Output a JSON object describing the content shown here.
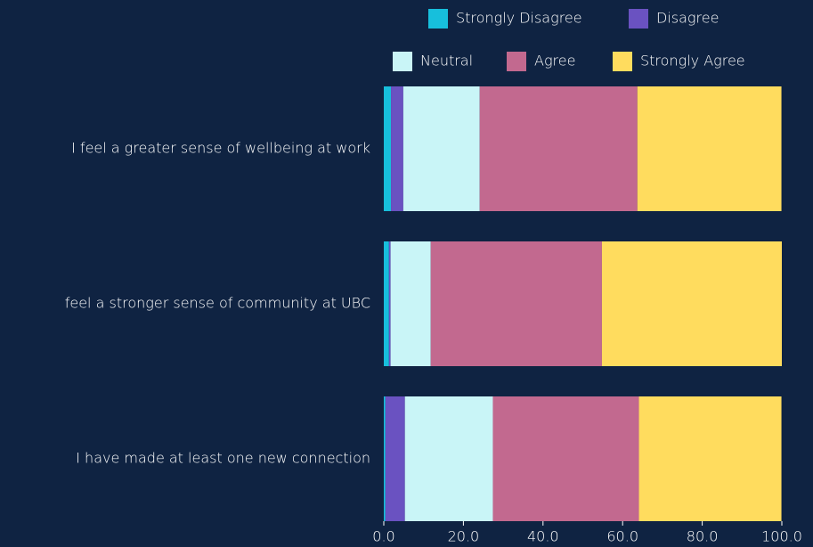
{
  "chart_data": {
    "type": "stacked-barh",
    "categories": [
      "I feel a greater sense of wellbeing at work",
      "feel a stronger sense of community at UBC",
      "I have made at least one new connection"
    ],
    "series": [
      {
        "name": "Strongly Disagree",
        "color": "#17bfdc",
        "values": [
          1.8,
          1.3,
          0.4
        ]
      },
      {
        "name": "Disagree",
        "color": "#6a52c1",
        "values": [
          3.1,
          0.4,
          4.9
        ]
      },
      {
        "name": "Neutral",
        "color": "#c9f5f7",
        "values": [
          19.2,
          10.1,
          22.1
        ]
      },
      {
        "name": "Agree",
        "color": "#c2698f",
        "values": [
          39.6,
          43.0,
          36.7
        ]
      },
      {
        "name": "Strongly Agree",
        "color": "#ffdc5e",
        "values": [
          36.2,
          45.2,
          35.8
        ]
      }
    ],
    "xlim": [
      0,
      100
    ],
    "xticks": [
      {
        "value": 0,
        "label": "0.0"
      },
      {
        "value": 20,
        "label": "20.0"
      },
      {
        "value": 40,
        "label": "40.0"
      },
      {
        "value": 60,
        "label": "60.0"
      },
      {
        "value": 80,
        "label": "80.0"
      },
      {
        "value": 100,
        "label": "100.0"
      }
    ]
  }
}
